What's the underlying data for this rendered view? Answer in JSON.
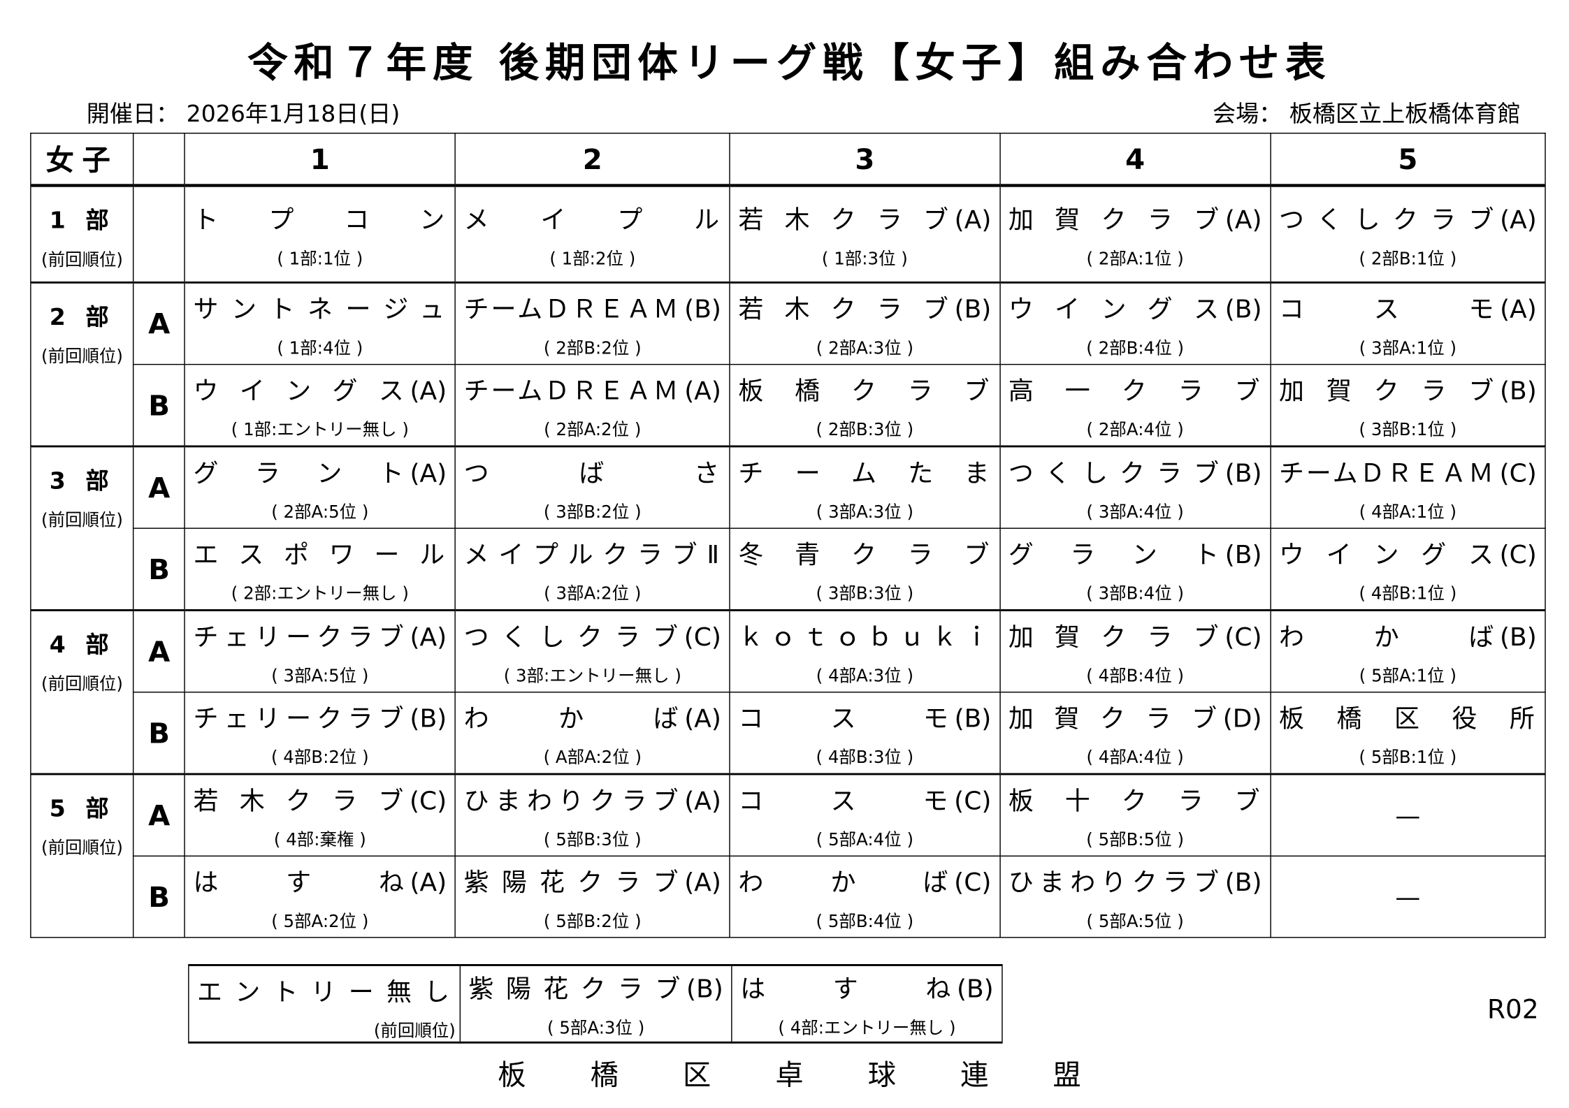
{
  "title": "令和７年度 後期団体リーグ戦【女子】組み合わせ表",
  "date_text": "開催日： 2026年1月18日(日)",
  "venue_text": "会場： 板橋区立上板橋体育館",
  "header": {
    "corner": "女子",
    "columns": [
      "1",
      "2",
      "3",
      "4",
      "5"
    ]
  },
  "prev_rank_label": "(前回順位)",
  "divisions": [
    {
      "label": "1 部",
      "rows": [
        {
          "sub": "",
          "teams": [
            {
              "name": "トプコン",
              "suffix": "",
              "rank": "( 1部:1位 )"
            },
            {
              "name": "メイプル",
              "suffix": "",
              "rank": "( 1部:2位 )"
            },
            {
              "name": "若木クラブ",
              "suffix": "(A)",
              "rank": "( 1部:3位 )"
            },
            {
              "name": "加賀クラブ",
              "suffix": "(A)",
              "rank": "( 2部A:1位 )"
            },
            {
              "name": "つくしクラブ",
              "suffix": "(A)",
              "rank": "( 2部B:1位 )"
            }
          ]
        }
      ]
    },
    {
      "label": "2 部",
      "rows": [
        {
          "sub": "A",
          "teams": [
            {
              "name": "サントネージュ",
              "suffix": "",
              "rank": "( 1部:4位 )"
            },
            {
              "name": "チームＤＲＥＡＭ",
              "suffix": "(B)",
              "rank": "( 2部B:2位 )"
            },
            {
              "name": "若木クラブ",
              "suffix": "(B)",
              "rank": "( 2部A:3位 )"
            },
            {
              "name": "ウイングス",
              "suffix": "(B)",
              "rank": "( 2部B:4位 )"
            },
            {
              "name": "コスモ",
              "suffix": "(A)",
              "rank": "( 3部A:1位 )"
            }
          ]
        },
        {
          "sub": "B",
          "teams": [
            {
              "name": "ウイングス",
              "suffix": "(A)",
              "rank": "( 1部:エントリー無し )"
            },
            {
              "name": "チームＤＲＥＡＭ",
              "suffix": "(A)",
              "rank": "( 2部A:2位 )"
            },
            {
              "name": "板橋クラブ",
              "suffix": "",
              "rank": "( 2部B:3位 )"
            },
            {
              "name": "高一クラブ",
              "suffix": "",
              "rank": "( 2部A:4位 )"
            },
            {
              "name": "加賀クラブ",
              "suffix": "(B)",
              "rank": "( 3部B:1位 )"
            }
          ]
        }
      ]
    },
    {
      "label": "3 部",
      "rows": [
        {
          "sub": "A",
          "teams": [
            {
              "name": "グラント",
              "suffix": "(A)",
              "rank": "( 2部A:5位 )"
            },
            {
              "name": "つばさ",
              "suffix": "",
              "rank": "( 3部B:2位 )"
            },
            {
              "name": "チームたま",
              "suffix": "",
              "rank": "( 3部A:3位 )"
            },
            {
              "name": "つくしクラブ",
              "suffix": "(B)",
              "rank": "( 3部A:4位 )"
            },
            {
              "name": "チームＤＲＥＡＭ",
              "suffix": "(C)",
              "rank": "( 4部A:1位 )"
            }
          ]
        },
        {
          "sub": "B",
          "teams": [
            {
              "name": "エスポワール",
              "suffix": "",
              "rank": "( 2部:エントリー無し )"
            },
            {
              "name": "メイプルクラブⅡ",
              "suffix": "",
              "rank": "( 3部A:2位 )"
            },
            {
              "name": "冬青クラブ",
              "suffix": "",
              "rank": "( 3部B:3位 )"
            },
            {
              "name": "グラント",
              "suffix": "(B)",
              "rank": "( 3部B:4位 )"
            },
            {
              "name": "ウイングス",
              "suffix": "(C)",
              "rank": "( 4部B:1位 )"
            }
          ]
        }
      ]
    },
    {
      "label": "4 部",
      "rows": [
        {
          "sub": "A",
          "teams": [
            {
              "name": "チェリークラブ",
              "suffix": "(A)",
              "rank": "( 3部A:5位 )"
            },
            {
              "name": "つくしクラブ",
              "suffix": "(C)",
              "rank": "( 3部:エントリー無し )"
            },
            {
              "name": "ｋｏｔｏｂｕｋｉ",
              "suffix": "",
              "rank": "( 4部A:3位 )"
            },
            {
              "name": "加賀クラブ",
              "suffix": "(C)",
              "rank": "( 4部B:4位 )"
            },
            {
              "name": "わかば",
              "suffix": "(B)",
              "rank": "( 5部A:1位 )"
            }
          ]
        },
        {
          "sub": "B",
          "teams": [
            {
              "name": "チェリークラブ",
              "suffix": "(B)",
              "rank": "( 4部B:2位 )"
            },
            {
              "name": "わかば",
              "suffix": "(A)",
              "rank": "( A部A:2位 )"
            },
            {
              "name": "コスモ",
              "suffix": "(B)",
              "rank": "( 4部B:3位 )"
            },
            {
              "name": "加賀クラブ",
              "suffix": "(D)",
              "rank": "( 4部A:4位 )"
            },
            {
              "name": "板橋区役所",
              "suffix": "",
              "rank": "( 5部B:1位 )"
            }
          ]
        }
      ]
    },
    {
      "label": "5 部",
      "rows": [
        {
          "sub": "A",
          "teams": [
            {
              "name": "若木クラブ",
              "suffix": "(C)",
              "rank": "( 4部:棄権 )"
            },
            {
              "name": "ひまわりクラブ",
              "suffix": "(A)",
              "rank": "( 5部B:3位 )"
            },
            {
              "name": "コスモ",
              "suffix": "(C)",
              "rank": "( 5部A:4位 )"
            },
            {
              "name": "板十クラブ",
              "suffix": "",
              "rank": "( 5部B:5位 )"
            },
            {
              "empty": "—"
            }
          ]
        },
        {
          "sub": "B",
          "teams": [
            {
              "name": "はすね",
              "suffix": "(A)",
              "rank": "( 5部A:2位 )"
            },
            {
              "name": "紫陽花クラブ",
              "suffix": "(A)",
              "rank": "( 5部B:2位 )"
            },
            {
              "name": "わかば",
              "suffix": "(C)",
              "rank": "( 5部B:4位 )"
            },
            {
              "name": "ひまわりクラブ",
              "suffix": "(B)",
              "rank": "( 5部A:5位 )"
            },
            {
              "empty": "—"
            }
          ]
        }
      ]
    }
  ],
  "no_entry": {
    "label": "エントリー無し",
    "prev_label": "(前回順位)",
    "teams": [
      {
        "name": "紫陽花クラブ",
        "suffix": "(B)",
        "rank": "( 5部A:3位 )"
      },
      {
        "name": "はすね",
        "suffix": "(B)",
        "rank": "( 4部:エントリー無し )"
      }
    ]
  },
  "code": "R02",
  "footer": [
    "板",
    "橋",
    "区",
    "卓",
    "球",
    "連",
    "盟"
  ]
}
